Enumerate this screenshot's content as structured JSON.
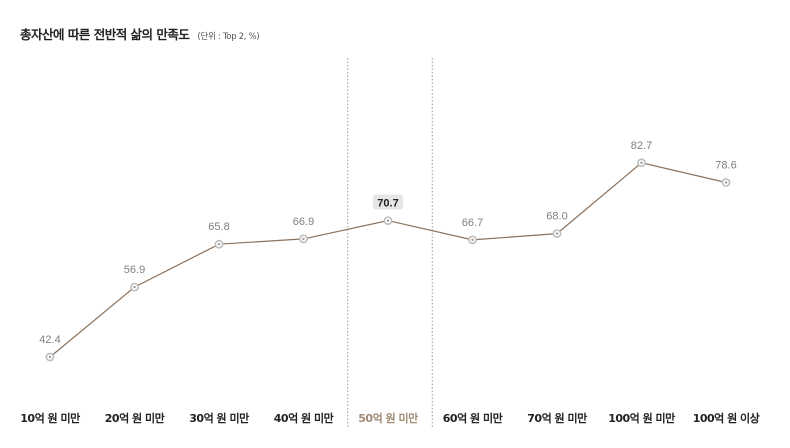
{
  "header": {
    "title": "총자산에 따른 전반적 삶의 만족도",
    "unit": "(단위 : Top 2, %)"
  },
  "colors": {
    "line": "#8a715c",
    "highlight_label": "#a08b74",
    "highlight_bg": "#e6e6e6",
    "divider": "#999999"
  },
  "chart_data": {
    "type": "line",
    "title": "총자산에 따른 전반적 삶의 만족도",
    "unit": "(단위 : Top 2, %)",
    "categories": [
      "10억 원 미만",
      "20억 원 미만",
      "30억 원 미만",
      "40억 원 미만",
      "50억 원 미만",
      "60억 원 미만",
      "70억 원 미만",
      "100억 원 미만",
      "100억 원 이상"
    ],
    "values": [
      42.4,
      56.9,
      65.8,
      66.9,
      70.7,
      66.7,
      68.0,
      82.7,
      78.6
    ],
    "value_labels": [
      "42.4",
      "56.9",
      "65.8",
      "66.9",
      "70.7",
      "66.7",
      "68.0",
      "82.7",
      "78.6"
    ],
    "highlight_index": 4,
    "dividers": "dotted vertical lines around 50억 원 미만",
    "grid": false,
    "legend": "none"
  }
}
